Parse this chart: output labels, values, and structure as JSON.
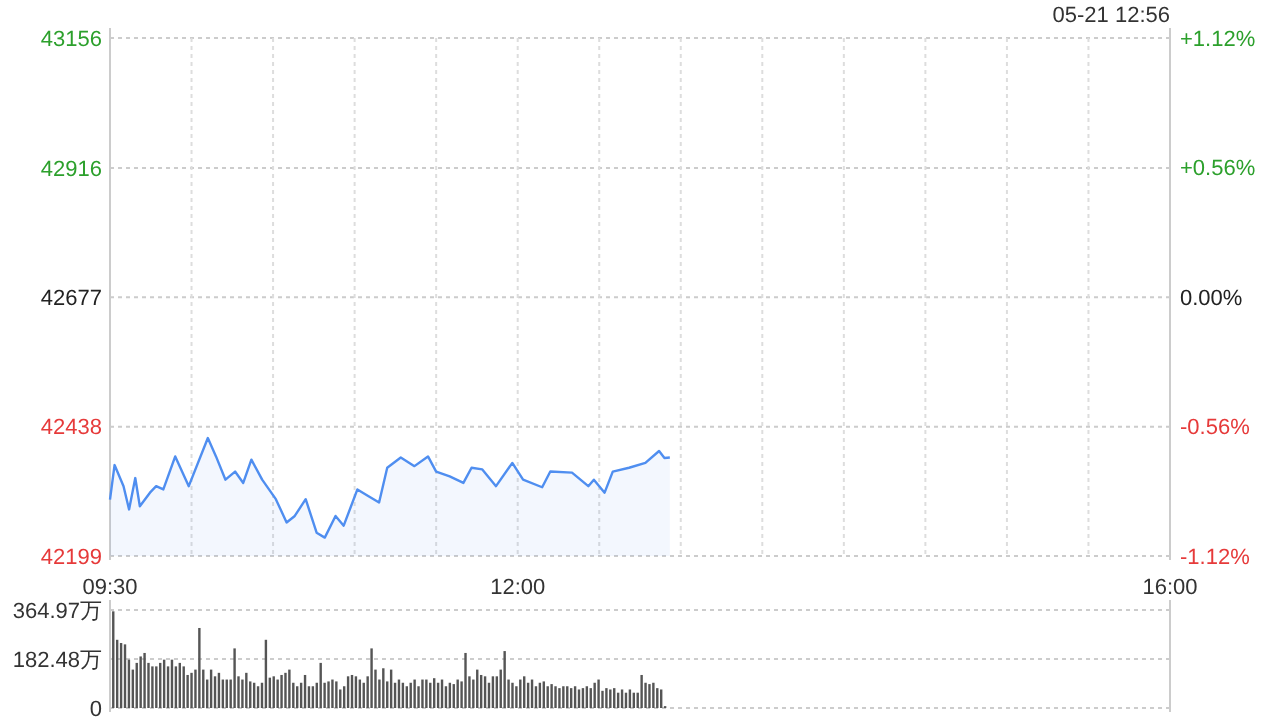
{
  "chart_data": [
    {
      "type": "area",
      "annotations": [
        "05-21 12:56"
      ],
      "xlim": [
        9.5,
        16
      ],
      "xticks": [
        {
          "value": 9.5,
          "label": "09:30"
        },
        {
          "value": 10,
          "label": null
        },
        {
          "value": 10.5,
          "label": null
        },
        {
          "value": 11,
          "label": null
        },
        {
          "value": 11.5,
          "label": null
        },
        {
          "value": 12,
          "label": "12:00"
        },
        {
          "value": 12.5,
          "label": null
        },
        {
          "value": 13,
          "label": null
        },
        {
          "value": 13.5,
          "label": null
        },
        {
          "value": 14,
          "label": null
        },
        {
          "value": 14.5,
          "label": null
        },
        {
          "value": 15,
          "label": null
        },
        {
          "value": 15.5,
          "label": null
        },
        {
          "value": 16,
          "label": "16:00"
        }
      ],
      "ylim": [
        42199,
        43156
      ],
      "yticks": [
        42199,
        42438,
        42677,
        42916,
        43156
      ],
      "y2lim": [
        -1.12,
        1.12
      ],
      "y2ticks": [
        {
          "value": 1.12,
          "label": "+1.12%"
        },
        {
          "value": 0.56,
          "label": "+0.56%"
        },
        {
          "value": 0,
          "label": "0.00%"
        },
        {
          "value": -0.56,
          "label": "-0.56%"
        },
        {
          "value": -1.12,
          "label": "-1.12%"
        }
      ],
      "grid": true,
      "series": [
        {
          "color": "#4f8ef0",
          "x": [
            9.5,
            9.528,
            9.583,
            9.617,
            9.655,
            9.683,
            9.745,
            9.783,
            9.827,
            9.9,
            9.983,
            10.1,
            10.15,
            10.208,
            10.267,
            10.317,
            10.367,
            10.433,
            10.517,
            10.583,
            10.633,
            10.7,
            10.767,
            10.817,
            10.883,
            10.933,
            11.017,
            11.083,
            11.15,
            11.2,
            11.283,
            11.367,
            11.45,
            11.5,
            11.583,
            11.667,
            11.717,
            11.783,
            11.867,
            11.967,
            12.033,
            12.15,
            12.2,
            12.333,
            12.433,
            12.467,
            12.533,
            12.583,
            12.683,
            12.783,
            12.867,
            12.9,
            12.933
          ],
          "values": [
            42303,
            42367,
            42328,
            42285,
            42343,
            42291,
            42316,
            42328,
            42322,
            42383,
            42328,
            42417,
            42383,
            42340,
            42355,
            42334,
            42377,
            42340,
            42304,
            42261,
            42273,
            42304,
            42242,
            42233,
            42273,
            42255,
            42322,
            42310,
            42298,
            42362,
            42381,
            42365,
            42383,
            42355,
            42346,
            42334,
            42362,
            42359,
            42328,
            42371,
            42340,
            42326,
            42355,
            42353,
            42328,
            42340,
            42316,
            42355,
            42362,
            42371,
            42393,
            42380,
            42381
          ]
        }
      ]
    },
    {
      "type": "bar",
      "xlim": [
        9.5,
        16
      ],
      "ylim": [
        0,
        364.97
      ],
      "yticks": [
        0,
        {
          "value": 182.48,
          "label": "182.48万"
        },
        {
          "value": 364.97,
          "label": "364.97万"
        }
      ],
      "grid": "y",
      "tick_labels": "y",
      "series": [
        {
          "color": "#555555",
          "x": [
            9.52,
            9.544,
            9.568,
            9.592,
            9.616,
            9.64,
            9.664,
            9.688,
            9.712,
            9.736,
            9.76,
            9.784,
            9.808,
            9.832,
            9.856,
            9.88,
            9.904,
            9.928,
            9.952,
            9.976,
            10,
            10.024,
            10.048,
            10.072,
            10.096,
            10.12,
            10.144,
            10.168,
            10.192,
            10.216,
            10.24,
            10.264,
            10.288,
            10.312,
            10.336,
            10.36,
            10.384,
            10.408,
            10.432,
            10.456,
            10.48,
            10.504,
            10.528,
            10.552,
            10.576,
            10.6,
            10.624,
            10.648,
            10.672,
            10.696,
            10.72,
            10.744,
            10.768,
            10.792,
            10.816,
            10.84,
            10.864,
            10.888,
            10.912,
            10.936,
            10.96,
            10.984,
            11.008,
            11.032,
            11.056,
            11.08,
            11.104,
            11.128,
            11.152,
            11.176,
            11.2,
            11.224,
            11.248,
            11.272,
            11.296,
            11.32,
            11.344,
            11.368,
            11.392,
            11.416,
            11.44,
            11.464,
            11.488,
            11.512,
            11.536,
            11.56,
            11.584,
            11.608,
            11.632,
            11.656,
            11.68,
            11.704,
            11.728,
            11.752,
            11.776,
            11.8,
            11.824,
            11.848,
            11.872,
            11.896,
            11.92,
            11.944,
            11.968,
            11.992,
            12.016,
            12.04,
            12.064,
            12.088,
            12.112,
            12.136,
            12.16,
            12.184,
            12.208,
            12.232,
            12.256,
            12.28,
            12.304,
            12.328,
            12.352,
            12.376,
            12.4,
            12.424,
            12.448,
            12.472,
            12.496,
            12.52,
            12.544,
            12.568,
            12.592,
            12.616,
            12.64,
            12.664,
            12.688,
            12.712,
            12.736,
            12.76,
            12.784,
            12.808,
            12.832,
            12.856,
            12.88,
            12.904
          ],
          "values": [
            360,
            254,
            242,
            237,
            180,
            143,
            168,
            192,
            205,
            168,
            155,
            155,
            168,
            180,
            155,
            180,
            155,
            168,
            155,
            123,
            131,
            143,
            298,
            143,
            106,
            143,
            118,
            131,
            106,
            106,
            106,
            222,
            118,
            106,
            131,
            99,
            94,
            81,
            94,
            254,
            113,
            118,
            106,
            123,
            131,
            143,
            94,
            81,
            94,
            123,
            81,
            81,
            94,
            168,
            94,
            99,
            106,
            99,
            69,
            81,
            118,
            123,
            118,
            106,
            94,
            118,
            222,
            143,
            106,
            148,
            99,
            143,
            94,
            106,
            94,
            81,
            94,
            106,
            81,
            106,
            106,
            94,
            111,
            94,
            106,
            81,
            94,
            89,
            106,
            99,
            205,
            118,
            106,
            143,
            123,
            118,
            94,
            118,
            118,
            143,
            212,
            106,
            94,
            81,
            106,
            118,
            94,
            106,
            81,
            94,
            99,
            81,
            89,
            81,
            74,
            81,
            81,
            74,
            81,
            69,
            74,
            81,
            74,
            94,
            106,
            64,
            74,
            69,
            74,
            57,
            69,
            57,
            69,
            57,
            57,
            123,
            94,
            89,
            94,
            74,
            69,
            7
          ]
        }
      ]
    }
  ]
}
